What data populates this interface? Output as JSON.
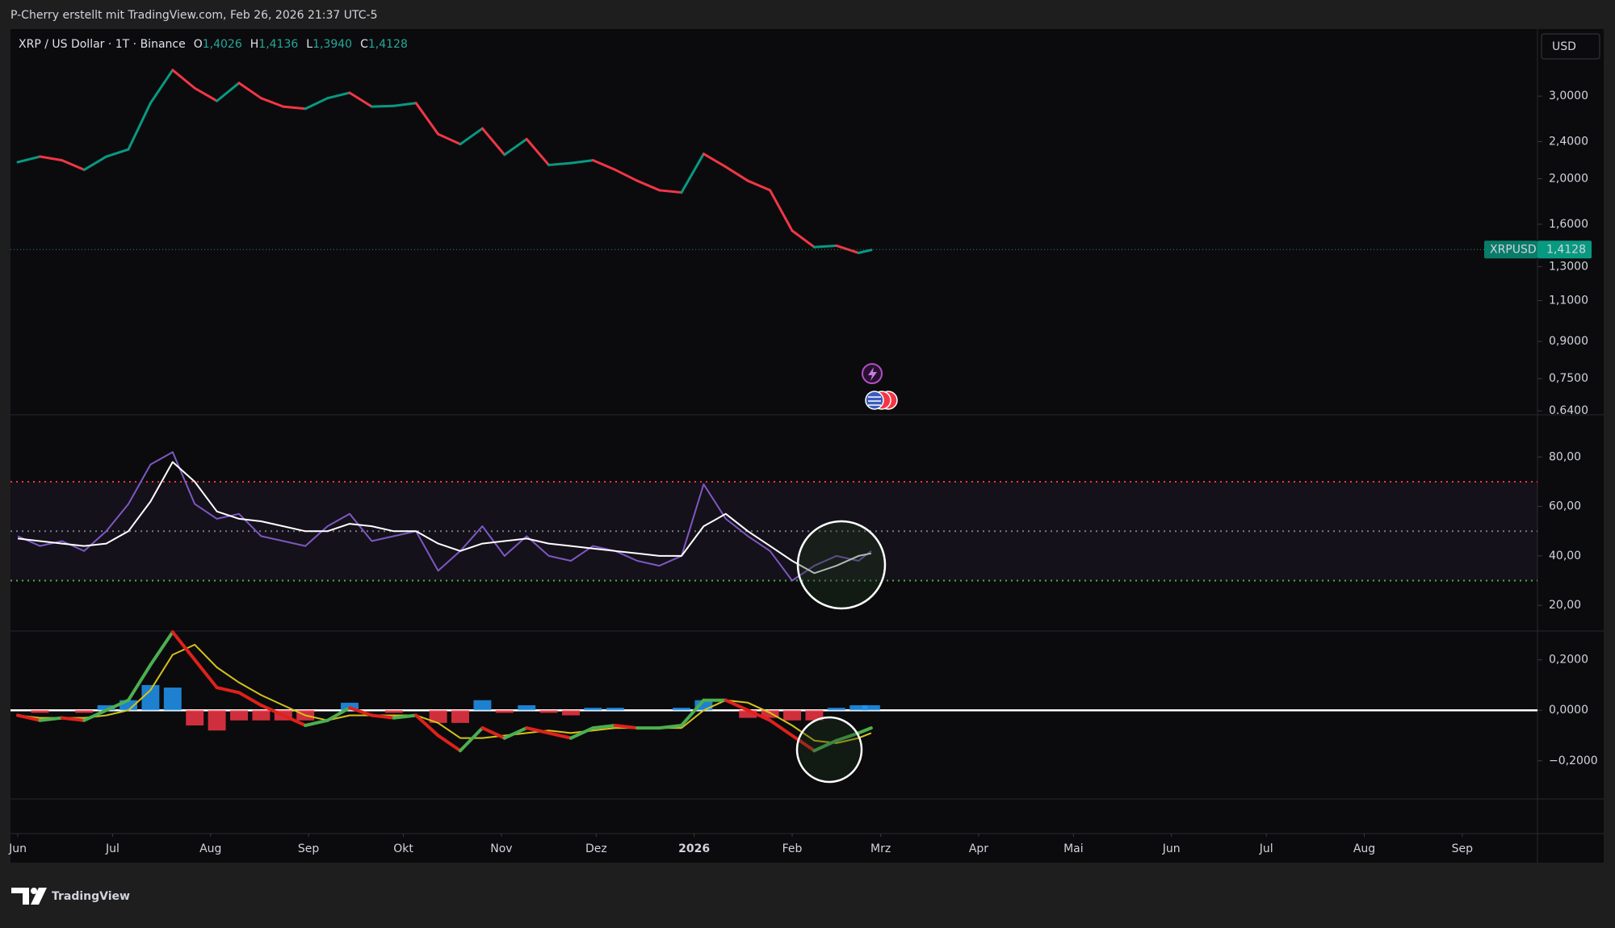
{
  "header": {
    "title": "P-Cherry erstellt mit TradingView.com, Feb 26, 2026 21:37 UTC-5"
  },
  "footer": {
    "brand": "TradingView"
  },
  "chart_data": [
    {
      "type": "line",
      "log_scale": true,
      "grid": false,
      "symbol": "XRP / US Dollar · 1T · Binance",
      "ohlc": [
        {
          "key": "O",
          "value": "1,4026"
        },
        {
          "key": "H",
          "value": "1,4136"
        },
        {
          "key": "L",
          "value": "1,3940"
        },
        {
          "key": "C",
          "value": "1,4128"
        }
      ],
      "currency": "USD",
      "price_tag": {
        "name": "XRPUSD",
        "value": 1.4128,
        "label": "1,4128",
        "color": "#089981"
      },
      "x": [
        0,
        7,
        14,
        21,
        28,
        35,
        42,
        49,
        56,
        63,
        70,
        77,
        84,
        91,
        98,
        105,
        112,
        119,
        126,
        133,
        140,
        147,
        154,
        161,
        168,
        175,
        182,
        189,
        196,
        203,
        210,
        217,
        224,
        231,
        238,
        245,
        252,
        259,
        266,
        270
      ],
      "xlim": [
        -2.3,
        480.8
      ],
      "xticks": [
        {
          "value": 0,
          "label": "Jun"
        },
        {
          "value": 30,
          "label": "Jul"
        },
        {
          "value": 61,
          "label": "Aug"
        },
        {
          "value": 92,
          "label": "Sep"
        },
        {
          "value": 122,
          "label": "Okt"
        },
        {
          "value": 153,
          "label": "Nov"
        },
        {
          "value": 183,
          "label": "Dez"
        },
        {
          "value": 214,
          "label": "2026"
        },
        {
          "value": 245,
          "label": "Feb"
        },
        {
          "value": 273,
          "label": "Mrz"
        },
        {
          "value": 304,
          "label": "Apr"
        },
        {
          "value": 334,
          "label": "Mai"
        },
        {
          "value": 365,
          "label": "Jun"
        },
        {
          "value": 395,
          "label": "Jul"
        },
        {
          "value": 426,
          "label": "Aug"
        },
        {
          "value": 457,
          "label": "Sep"
        }
      ],
      "ylim": [
        0.628,
        4.17
      ],
      "yticks": [
        {
          "value": 3.0,
          "label": "3,0000"
        },
        {
          "value": 2.4,
          "label": "2,4000"
        },
        {
          "value": 2.0,
          "label": "2,0000"
        },
        {
          "value": 1.6,
          "label": "1,6000"
        },
        {
          "value": 1.3,
          "label": "1,3000"
        },
        {
          "value": 1.1,
          "label": "1,1000"
        },
        {
          "value": 0.9,
          "label": "0,9000"
        },
        {
          "value": 0.75,
          "label": "0,7500"
        },
        {
          "value": 0.64,
          "label": "0.6400"
        }
      ],
      "series": [
        {
          "up_color": "#089981",
          "down_color": "#f23645",
          "values": [
            2.17,
            2.23,
            2.19,
            2.09,
            2.23,
            2.31,
            2.9,
            3.41,
            3.12,
            2.93,
            3.2,
            2.97,
            2.85,
            2.82,
            2.97,
            3.05,
            2.85,
            2.86,
            2.9,
            2.49,
            2.37,
            2.56,
            2.25,
            2.43,
            2.14,
            2.16,
            2.19,
            2.09,
            1.98,
            1.89,
            1.87,
            2.26,
            2.12,
            1.98,
            1.89,
            1.55,
            1.43,
            1.44,
            1.39,
            1.41
          ]
        }
      ]
    },
    {
      "type": "line",
      "grid": false,
      "x": [
        0,
        7,
        14,
        21,
        28,
        35,
        42,
        49,
        56,
        63,
        70,
        77,
        84,
        91,
        98,
        105,
        112,
        119,
        126,
        133,
        140,
        147,
        154,
        161,
        168,
        175,
        182,
        189,
        196,
        203,
        210,
        217,
        224,
        231,
        238,
        245,
        252,
        259,
        266,
        270
      ],
      "xlim": [
        -2.3,
        480.8
      ],
      "ylim": [
        9.6,
        97.1
      ],
      "yticks": [
        {
          "value": 80,
          "label": "80,00"
        },
        {
          "value": 60,
          "label": "60,00"
        },
        {
          "value": 40,
          "label": "40,00"
        },
        {
          "value": 20,
          "label": "20,00"
        }
      ],
      "bands": [
        {
          "value": 70,
          "color": "#f23645"
        },
        {
          "value": 50,
          "color": "#787b86"
        },
        {
          "value": 30,
          "color": "#4caf50"
        }
      ],
      "band_fill": "#7e57c2",
      "series": [
        {
          "color": "#7e57c2",
          "values": [
            48,
            44,
            46,
            42,
            50,
            61,
            77,
            82,
            61,
            55,
            57,
            48,
            46,
            44,
            52,
            57,
            46,
            48,
            50,
            34,
            42,
            52,
            40,
            48,
            40,
            38,
            44,
            42,
            38,
            36,
            40,
            69,
            55,
            48,
            42,
            30,
            36,
            40,
            38,
            42
          ]
        },
        {
          "color": "#ffffff",
          "values": [
            47,
            46,
            45,
            44,
            45,
            50,
            62,
            78,
            70,
            58,
            55,
            54,
            52,
            50,
            50,
            53,
            52,
            50,
            50,
            45,
            42,
            45,
            46,
            47,
            45,
            44,
            43,
            42,
            41,
            40,
            40,
            52,
            57,
            50,
            44,
            38,
            33,
            36,
            40,
            41
          ]
        }
      ]
    },
    {
      "type": "line",
      "grid": false,
      "zero_line": "#ffffff",
      "x": [
        0,
        7,
        14,
        21,
        28,
        35,
        42,
        49,
        56,
        63,
        70,
        77,
        84,
        91,
        98,
        105,
        112,
        119,
        126,
        133,
        140,
        147,
        154,
        161,
        168,
        175,
        182,
        189,
        196,
        203,
        210,
        217,
        224,
        231,
        238,
        245,
        252,
        259,
        266,
        270
      ],
      "xlim": [
        -2.3,
        480.8
      ],
      "ylim": [
        -0.351,
        0.314
      ],
      "yticks": [
        {
          "value": 0.2,
          "label": "0,2000"
        },
        {
          "value": 0,
          "label": "0,0000"
        },
        {
          "value": -0.2,
          "label": "−0,2000"
        }
      ],
      "histogram": {
        "up_color": "#2196f3",
        "down_color": "#f23645",
        "values": [
          0,
          -0.01,
          0,
          -0.01,
          0.02,
          0.04,
          0.1,
          0.09,
          -0.06,
          -0.08,
          -0.04,
          -0.04,
          -0.04,
          -0.04,
          0,
          0.03,
          0,
          -0.01,
          0,
          -0.05,
          -0.05,
          0.04,
          -0.01,
          0.02,
          -0.01,
          -0.02,
          0.01,
          0.01,
          0,
          0,
          0.01,
          0.04,
          0,
          -0.03,
          -0.03,
          -0.04,
          -0.04,
          0.01,
          0.02,
          0.02
        ]
      },
      "series": [
        {
          "color": "#d4c21a",
          "values": [
            -0.02,
            -0.03,
            -0.03,
            -0.03,
            -0.02,
            0,
            0.08,
            0.22,
            0.26,
            0.17,
            0.11,
            0.06,
            0.02,
            -0.02,
            -0.04,
            -0.02,
            -0.02,
            -0.02,
            -0.02,
            -0.05,
            -0.11,
            -0.11,
            -0.1,
            -0.09,
            -0.08,
            -0.09,
            -0.08,
            -0.07,
            -0.07,
            -0.07,
            -0.07,
            0,
            0.04,
            0.03,
            -0.01,
            -0.06,
            -0.12,
            -0.13,
            -0.11,
            -0.09
          ]
        },
        {
          "up_color": "#4caf50",
          "down_color": "#e0211b",
          "values": [
            -0.02,
            -0.04,
            -0.03,
            -0.04,
            0,
            0.04,
            0.18,
            0.31,
            0.2,
            0.09,
            0.07,
            0.02,
            -0.02,
            -0.06,
            -0.04,
            0.01,
            -0.02,
            -0.03,
            -0.02,
            -0.1,
            -0.16,
            -0.07,
            -0.11,
            -0.07,
            -0.09,
            -0.11,
            -0.07,
            -0.06,
            -0.07,
            -0.07,
            -0.06,
            0.04,
            0.04,
            0,
            -0.04,
            -0.1,
            -0.16,
            -0.12,
            -0.09,
            -0.07
          ]
        }
      ]
    }
  ]
}
